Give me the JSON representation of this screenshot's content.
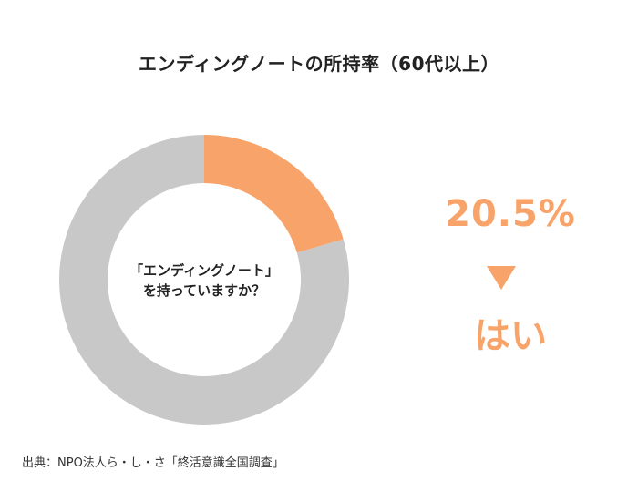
{
  "title": "エンディングノートの所持率（60代以上）",
  "question": {
    "line1": "「エンディングノート」",
    "line2": "を持っていますか？"
  },
  "highlight": {
    "percent_label": "20.5%",
    "answer_label": "はい"
  },
  "source": "出典：NPO法人ら・し・さ「終活意識全国調査」",
  "colors": {
    "highlight": "#F7A369",
    "remainder": "#C8C8C8"
  },
  "chart_data": {
    "type": "pie",
    "donut": true,
    "title": "エンディングノートの所持率（60代以上）",
    "slices": [
      {
        "label": "はい",
        "value": 20.5,
        "color": "#F7A369"
      },
      {
        "label": "",
        "value": 79.5,
        "color": "#C8C8C8"
      }
    ],
    "start_angle_deg": 0,
    "direction": "clockwise"
  }
}
